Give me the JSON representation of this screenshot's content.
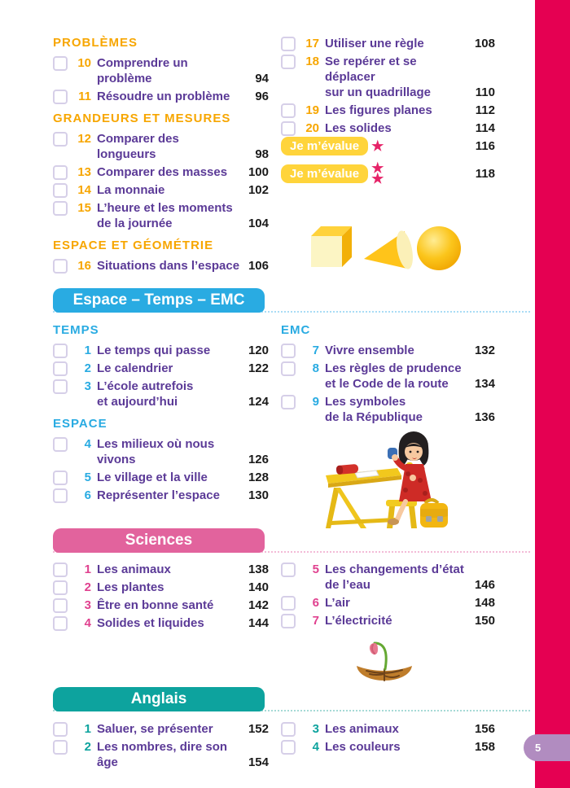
{
  "colors": {
    "amber": "#F7A600",
    "purple": "#5B3A97",
    "blue": "#29ABE2",
    "pink_number": "#E0418F",
    "pink_band": "#E2639D",
    "teal": "#0DA39E",
    "bar_pink": "#E50052",
    "tab_mauve": "#B18CC0",
    "badge_yellow": "#FFD43B",
    "star_pink": "#E62368",
    "black": "#1A1A1A",
    "checkbox_border": "#D6CFE8",
    "dot_blue": "#A9DCF5",
    "dot_pink": "#F3BBD7",
    "dot_teal": "#A6DAD6"
  },
  "math": {
    "left_sections": [
      {
        "title": "PROBLÈMES",
        "color": "amber",
        "items": [
          {
            "num": "10",
            "lines": [
              "Comprendre un problème"
            ],
            "page": "94"
          },
          {
            "num": "11",
            "lines": [
              "Résoudre un problème"
            ],
            "page": "96"
          }
        ]
      },
      {
        "title": "GRANDEURS ET MESURES",
        "color": "amber",
        "items": [
          {
            "num": "12",
            "lines": [
              "Comparer des longueurs"
            ],
            "page": "98"
          },
          {
            "num": "13",
            "lines": [
              "Comparer des masses"
            ],
            "page": "100"
          },
          {
            "num": "14",
            "lines": [
              "La monnaie"
            ],
            "page": "102"
          },
          {
            "num": "15",
            "lines": [
              "L’heure et les moments",
              "de la journée"
            ],
            "page": "104"
          }
        ]
      },
      {
        "title": "ESPACE ET GÉOMÉTRIE",
        "color": "amber",
        "items": [
          {
            "num": "16",
            "lines": [
              "Situations dans l’espace"
            ],
            "page": "106"
          }
        ]
      }
    ],
    "right_sections": [
      {
        "title": "",
        "color": "amber",
        "items": [
          {
            "num": "17",
            "lines": [
              "Utiliser une règle"
            ],
            "page": "108"
          },
          {
            "num": "18",
            "lines": [
              "Se repérer et se déplacer",
              "sur un quadrillage"
            ],
            "page": "110"
          },
          {
            "num": "19",
            "lines": [
              "Les figures planes"
            ],
            "page": "112"
          },
          {
            "num": "20",
            "lines": [
              "Les solides"
            ],
            "page": "114"
          }
        ]
      }
    ],
    "evaluations": [
      {
        "label": "Je m’évalue",
        "stars": 1,
        "page": "116"
      },
      {
        "label": "Je m’évalue",
        "stars": 2,
        "page": "118"
      }
    ]
  },
  "espace_temps_emc": {
    "header": "Espace – Temps – EMC",
    "left_sections": [
      {
        "title": "TEMPS",
        "color": "blue",
        "items": [
          {
            "num": "1",
            "lines": [
              "Le temps qui passe"
            ],
            "page": "120"
          },
          {
            "num": "2",
            "lines": [
              "Le calendrier"
            ],
            "page": "122"
          },
          {
            "num": "3",
            "lines": [
              "L’école autrefois",
              "et aujourd’hui"
            ],
            "page": "124"
          }
        ]
      },
      {
        "title": "ESPACE",
        "color": "blue",
        "items": [
          {
            "num": "4",
            "lines": [
              "Les milieux où nous vivons"
            ],
            "page": "126"
          },
          {
            "num": "5",
            "lines": [
              "Le village et la ville"
            ],
            "page": "128"
          },
          {
            "num": "6",
            "lines": [
              "Représenter l’espace"
            ],
            "page": "130"
          }
        ]
      }
    ],
    "right_sections": [
      {
        "title": "EMC",
        "color": "blue",
        "items": [
          {
            "num": "7",
            "lines": [
              "Vivre ensemble"
            ],
            "page": "132"
          },
          {
            "num": "8",
            "lines": [
              "Les règles de prudence",
              "et le Code de la route"
            ],
            "page": "134"
          },
          {
            "num": "9",
            "lines": [
              "Les symboles",
              "de la République"
            ],
            "page": "136"
          }
        ]
      }
    ]
  },
  "sciences": {
    "header": "Sciences",
    "left_sections": [
      {
        "title": "",
        "color": "pink_number",
        "items": [
          {
            "num": "1",
            "lines": [
              "Les animaux"
            ],
            "page": "138"
          },
          {
            "num": "2",
            "lines": [
              "Les plantes"
            ],
            "page": "140"
          },
          {
            "num": "3",
            "lines": [
              "Être en bonne santé"
            ],
            "page": "142"
          },
          {
            "num": "4",
            "lines": [
              "Solides et liquides"
            ],
            "page": "144"
          }
        ]
      }
    ],
    "right_sections": [
      {
        "title": "",
        "color": "pink_number",
        "items": [
          {
            "num": "5",
            "lines": [
              "Les changements d’état",
              "de l’eau"
            ],
            "page": "146"
          },
          {
            "num": "6",
            "lines": [
              "L’air"
            ],
            "page": "148"
          },
          {
            "num": "7",
            "lines": [
              "L’électricité"
            ],
            "page": "150"
          }
        ]
      }
    ]
  },
  "anglais": {
    "header": "Anglais",
    "left_sections": [
      {
        "title": "",
        "color": "teal",
        "items": [
          {
            "num": "1",
            "lines": [
              "Saluer, se présenter"
            ],
            "page": "152"
          },
          {
            "num": "2",
            "lines": [
              "Les nombres, dire son âge"
            ],
            "page": "154"
          }
        ]
      }
    ],
    "right_sections": [
      {
        "title": "",
        "color": "teal",
        "items": [
          {
            "num": "3",
            "lines": [
              "Les animaux"
            ],
            "page": "156"
          },
          {
            "num": "4",
            "lines": [
              "Les couleurs"
            ],
            "page": "158"
          }
        ]
      }
    ]
  },
  "illustrations": {
    "shapes": "cube-cone-sphere-yellow",
    "girl": "girl-at-school-desk",
    "plant": "flower-growing-in-soil"
  },
  "page_tab": {
    "number": "5"
  }
}
